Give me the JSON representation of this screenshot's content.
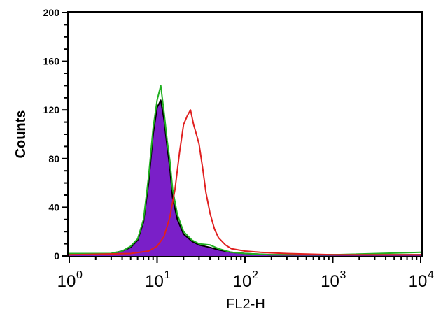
{
  "chart_data": {
    "type": "area",
    "xlabel": "FL2-H",
    "ylabel": "Counts",
    "xscale": "log",
    "xlim": [
      1,
      10000
    ],
    "ylim": [
      0,
      200
    ],
    "grid": false,
    "y_ticks": [
      "0",
      "40",
      "80",
      "120",
      "160",
      "200"
    ],
    "y_tick_values": [
      0,
      40,
      80,
      120,
      160,
      200
    ],
    "x_ticks": [
      {
        "base": "10",
        "exp": "0",
        "value": 1
      },
      {
        "base": "10",
        "exp": "1",
        "value": 10
      },
      {
        "base": "10",
        "exp": "2",
        "value": 100
      },
      {
        "base": "10",
        "exp": "3",
        "value": 1000
      },
      {
        "base": "10",
        "exp": "4",
        "value": 10000
      }
    ],
    "series": [
      {
        "style": "filled",
        "fill_color": "#7a1fc8",
        "line_color": "#000000",
        "x": [
          1,
          3,
          4,
          5,
          6,
          7,
          8,
          9,
          10,
          11,
          12,
          13,
          14,
          15,
          17,
          20,
          25,
          30,
          40,
          50,
          70,
          100,
          200,
          1000,
          10000
        ],
        "y": [
          2,
          2,
          4,
          7,
          13,
          28,
          60,
          100,
          122,
          128,
          112,
          90,
          72,
          48,
          30,
          18,
          12,
          9,
          7,
          5,
          3,
          2,
          1,
          1,
          1
        ]
      },
      {
        "style": "line",
        "line_color": "#22b022",
        "x": [
          1,
          3,
          4,
          5,
          6,
          7,
          8,
          9,
          10,
          11,
          12,
          13,
          14,
          15,
          17,
          20,
          25,
          30,
          40,
          50,
          70,
          100,
          200,
          1000,
          10000
        ],
        "y": [
          2,
          2,
          4,
          8,
          14,
          30,
          65,
          105,
          128,
          140,
          118,
          95,
          78,
          55,
          34,
          20,
          13,
          10,
          9,
          6,
          3,
          2,
          1,
          1,
          3
        ]
      },
      {
        "style": "line",
        "line_color": "#e02020",
        "x": [
          1,
          5,
          8,
          10,
          12,
          14,
          16,
          18,
          20,
          22,
          24,
          26,
          28,
          30,
          33,
          36,
          40,
          45,
          50,
          60,
          70,
          100,
          150,
          300,
          1000,
          10000
        ],
        "y": [
          1,
          2,
          4,
          8,
          16,
          32,
          55,
          85,
          108,
          115,
          120,
          108,
          100,
          92,
          72,
          52,
          35,
          22,
          15,
          9,
          6,
          4,
          3,
          2,
          1,
          1
        ]
      }
    ]
  }
}
